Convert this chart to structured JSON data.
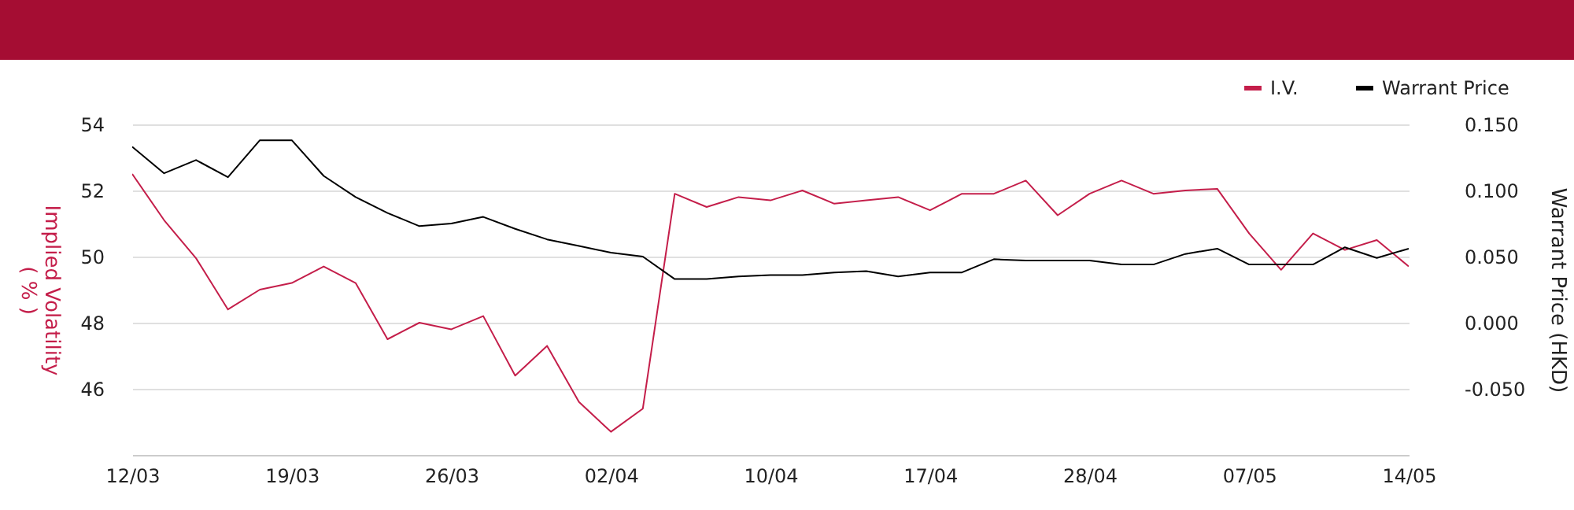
{
  "chart_data": {
    "type": "line",
    "categories": [
      "12/03",
      null,
      null,
      null,
      null,
      "19/03",
      null,
      null,
      null,
      null,
      "26/03",
      null,
      null,
      null,
      null,
      "02/04",
      null,
      null,
      null,
      null,
      "10/04",
      null,
      null,
      null,
      null,
      "17/04",
      null,
      null,
      null,
      null,
      "28/04",
      null,
      null,
      null,
      null,
      "07/05",
      null,
      null,
      null,
      null,
      "14/05"
    ],
    "series": [
      {
        "name": "I.V.",
        "color": "#c41e4a",
        "values": [
          52.5,
          51.1,
          49.95,
          48.4,
          49.0,
          49.2,
          49.7,
          49.2,
          47.5,
          48.0,
          47.8,
          48.2,
          46.4,
          47.3,
          45.6,
          44.7,
          45.4,
          51.9,
          51.5,
          51.8,
          51.7,
          52.0,
          51.6,
          51.7,
          51.8,
          51.4,
          51.9,
          51.9,
          52.3,
          51.25,
          51.9,
          52.3,
          51.9,
          52.0,
          52.05,
          50.7,
          49.6,
          50.7,
          50.2,
          50.5,
          49.7
        ]
      },
      {
        "name": "Warrant Price",
        "color": "#000000",
        "axis": "y2",
        "values": [
          0.133,
          0.113,
          0.123,
          0.11,
          0.138,
          0.138,
          0.111,
          0.095,
          0.083,
          0.073,
          0.075,
          0.08,
          0.071,
          0.063,
          0.058,
          0.053,
          0.05,
          0.033,
          0.033,
          0.035,
          0.036,
          0.036,
          0.038,
          0.039,
          0.035,
          0.038,
          0.038,
          0.048,
          0.047,
          0.047,
          0.047,
          0.044,
          0.044,
          0.052,
          0.056,
          0.044,
          0.044,
          0.044,
          0.057,
          0.049,
          0.056
        ]
      }
    ],
    "ylabel": "Implied Volatility\n( % )",
    "y2label": "Warrant Price (HKD)",
    "ylim": [
      44,
      54
    ],
    "yticks": [
      46,
      48,
      50,
      52,
      54
    ],
    "y2lim": [
      -0.1,
      0.15
    ],
    "y2ticks": [
      {
        "value": -0.05,
        "label": "-0.050"
      },
      {
        "value": 0,
        "label": "0.000"
      },
      {
        "value": 0.05,
        "label": "0.050"
      },
      {
        "value": 0.1,
        "label": "0.100"
      },
      {
        "value": 0.15,
        "label": "0.150"
      }
    ],
    "grid": "y",
    "legend": "top right",
    "marker": "none",
    "line_style": "solid"
  }
}
